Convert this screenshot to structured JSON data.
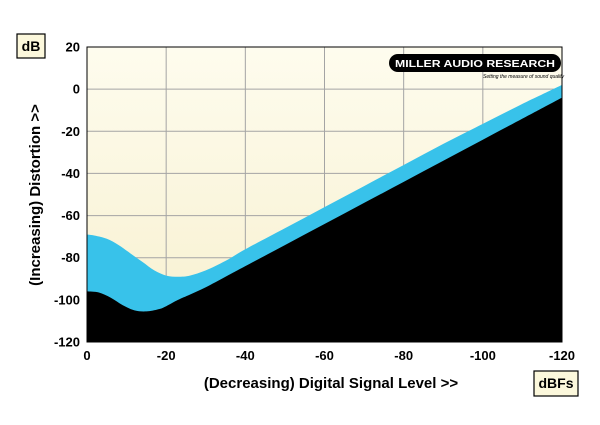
{
  "chart_data": {
    "type": "area",
    "xlabel": "(Decreasing) Digital Signal Level >>",
    "ylabel": "(Increasing) Distortion >>",
    "x_unit": "dBFs",
    "y_unit": "dB",
    "xlim": [
      0,
      -120
    ],
    "ylim": [
      -120,
      20
    ],
    "x_ticks": [
      0,
      -20,
      -40,
      -60,
      -80,
      -100,
      -120
    ],
    "y_ticks": [
      20,
      0,
      -20,
      -40,
      -60,
      -80,
      -100,
      -120
    ],
    "grid": true,
    "series": [
      {
        "role": "upper",
        "x": [
          0,
          -2,
          -5,
          -8,
          -11,
          -14,
          -17,
          -20,
          -23,
          -26,
          -30,
          -35,
          -40,
          -50,
          -60,
          -70,
          -80,
          -90,
          -100,
          -110,
          -115,
          -120
        ],
        "y": [
          -69,
          -69.5,
          -71,
          -74,
          -78,
          -82,
          -86,
          -88.5,
          -89,
          -88.5,
          -86,
          -81.5,
          -76,
          -66,
          -56,
          -46,
          -36,
          -26,
          -16.5,
          -7,
          -2.5,
          2
        ]
      },
      {
        "role": "lower",
        "x": [
          0,
          -3,
          -6,
          -9,
          -12,
          -15,
          -18,
          -20,
          -23,
          -26,
          -30,
          -35,
          -40,
          -50,
          -60,
          -70,
          -80,
          -90,
          -100,
          -110,
          -115,
          -120
        ],
        "y": [
          -96,
          -96.5,
          -99,
          -102.5,
          -105,
          -105.5,
          -104.5,
          -103,
          -100,
          -97.5,
          -94,
          -89,
          -84,
          -74,
          -64,
          -54,
          -44,
          -34,
          -24,
          -14,
          -9,
          -4
        ]
      }
    ],
    "colors": {
      "band": "#38c2ea",
      "below": "#000000",
      "background": "#fbf7dd",
      "grid": "#a4a4a4"
    }
  },
  "logo": {
    "name": "MILLER AUDIO RESEARCH",
    "tagline": "Setting the measure of sound quality"
  }
}
